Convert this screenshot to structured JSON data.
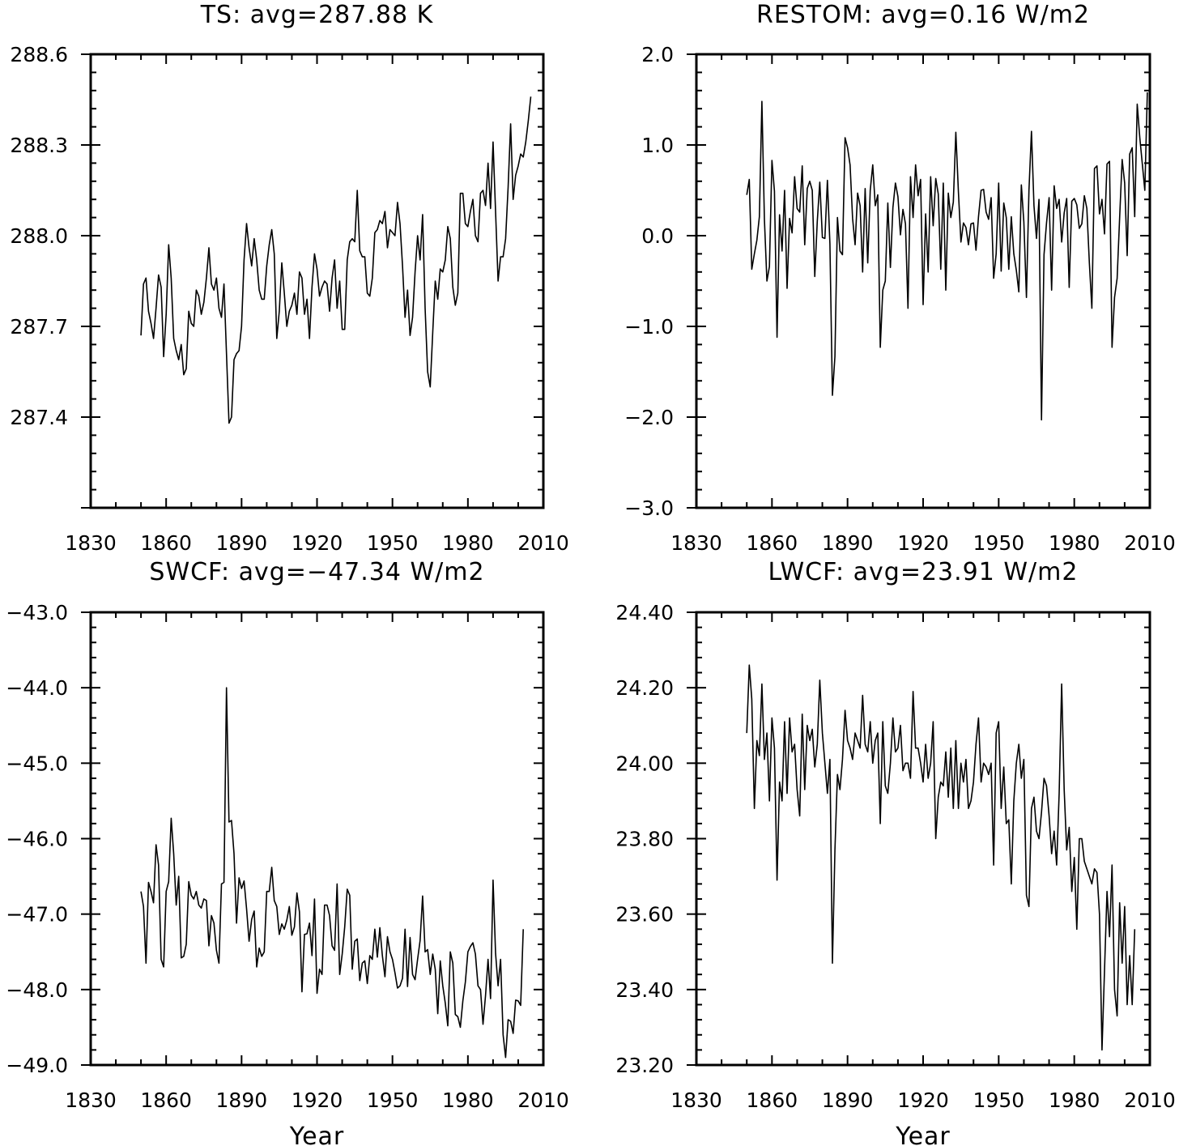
{
  "chart_data": [
    {
      "type": "line",
      "title": "TS: avg=287.88 K",
      "xlabel": "",
      "ylabel": "",
      "xlim": [
        1830,
        2010
      ],
      "ylim": [
        287.1,
        288.6
      ],
      "xticks": [
        1830,
        1860,
        1890,
        1920,
        1950,
        1980,
        2010
      ],
      "yticks": [
        "287.4",
        "287.7",
        "288.0",
        "288.3",
        "288.6"
      ],
      "grid": false,
      "series": [
        {
          "x_start": 1850,
          "values": [
            287.67,
            287.84,
            287.86,
            287.75,
            287.71,
            287.66,
            287.76,
            287.87,
            287.83,
            287.6,
            287.74,
            287.97,
            287.86,
            287.66,
            287.62,
            287.59,
            287.64,
            287.54,
            287.56,
            287.75,
            287.71,
            287.7,
            287.82,
            287.8,
            287.74,
            287.78,
            287.86,
            287.96,
            287.84,
            287.82,
            287.86,
            287.76,
            287.73,
            287.84,
            287.61,
            287.38,
            287.4,
            287.59,
            287.61,
            287.62,
            287.7,
            287.92,
            288.04,
            287.96,
            287.9,
            287.99,
            287.92,
            287.82,
            287.79,
            287.79,
            287.9,
            287.97,
            288.02,
            287.94,
            287.66,
            287.75,
            287.91,
            287.81,
            287.7,
            287.75,
            287.77,
            287.81,
            287.74,
            287.88,
            287.86,
            287.74,
            287.79,
            287.66,
            287.83,
            287.94,
            287.89,
            287.8,
            287.83,
            287.85,
            287.84,
            287.75,
            287.86,
            287.92,
            287.76,
            287.85,
            287.69,
            287.69,
            287.92,
            287.98,
            287.99,
            287.98,
            288.15,
            287.95,
            287.93,
            287.93,
            287.81,
            287.8,
            287.86,
            288.01,
            288.02,
            288.05,
            288.04,
            288.08,
            287.96,
            288.02,
            288.01,
            288.0,
            288.11,
            288.04,
            287.9,
            287.73,
            287.82,
            287.67,
            287.73,
            287.88,
            288.0,
            287.92,
            288.07,
            287.76,
            287.55,
            287.5,
            287.68,
            287.85,
            287.79,
            287.89,
            287.88,
            287.92,
            288.03,
            287.99,
            287.83,
            287.77,
            287.81,
            288.14,
            288.14,
            288.04,
            288.03,
            288.08,
            288.12,
            288.0,
            287.98,
            288.14,
            288.15,
            288.1,
            288.24,
            288.09,
            288.31,
            288.08,
            287.85,
            287.93,
            287.93,
            287.99,
            288.16,
            288.37,
            288.12,
            288.2,
            288.23,
            288.27,
            288.26,
            288.31,
            288.38,
            288.46
          ]
        }
      ]
    },
    {
      "type": "line",
      "title": "RESTOM: avg=0.16 W/m2",
      "xlabel": "",
      "ylabel": "",
      "xlim": [
        1830,
        2010
      ],
      "ylim": [
        -3.0,
        2.0
      ],
      "xticks": [
        1830,
        1860,
        1890,
        1920,
        1950,
        1980,
        2010
      ],
      "yticks": [
        "−3.0",
        "−2.0",
        "−1.0",
        "0.0",
        "1.0",
        "2.0"
      ],
      "grid": false,
      "series": [
        {
          "x_start": 1850,
          "values": [
            0.45,
            0.62,
            -0.37,
            -0.2,
            -0.05,
            0.21,
            1.48,
            0.18,
            -0.5,
            -0.34,
            0.83,
            0.49,
            -1.12,
            0.23,
            -0.17,
            0.5,
            -0.58,
            0.19,
            0.03,
            0.65,
            0.3,
            0.26,
            0.77,
            -0.1,
            0.52,
            0.6,
            0.5,
            -0.45,
            0.16,
            0.59,
            -0.02,
            -0.03,
            0.61,
            -0.09,
            -1.76,
            -1.33,
            0.2,
            -0.17,
            -0.21,
            1.08,
            0.97,
            0.78,
            0.19,
            -0.1,
            0.47,
            0.33,
            -0.4,
            0.52,
            -0.3,
            0.5,
            0.78,
            0.33,
            0.45,
            -1.23,
            -0.6,
            -0.5,
            0.36,
            -0.35,
            0.31,
            0.58,
            0.43,
            0.01,
            0.29,
            0.13,
            -0.8,
            0.65,
            0.2,
            0.78,
            0.44,
            0.62,
            -0.76,
            0.24,
            -0.4,
            0.65,
            0.11,
            0.63,
            0.46,
            -0.37,
            0.58,
            -0.6,
            0.47,
            0.2,
            0.37,
            1.14,
            0.48,
            -0.07,
            0.14,
            0.09,
            -0.1,
            0.13,
            0.14,
            -0.16,
            0.21,
            0.5,
            0.51,
            0.26,
            0.18,
            0.42,
            -0.47,
            -0.2,
            0.58,
            -0.39,
            0.36,
            0.2,
            -0.37,
            0.21,
            -0.2,
            -0.38,
            -0.62,
            0.56,
            0.15,
            -0.68,
            0.5,
            1.15,
            0.33,
            -0.03,
            0.4,
            -2.03,
            -0.21,
            0.14,
            0.42,
            -0.6,
            0.55,
            0.3,
            0.4,
            -0.07,
            0.25,
            0.41,
            -0.57,
            0.38,
            0.41,
            0.34,
            0.08,
            0.13,
            0.44,
            0.3,
            -0.3,
            -0.8,
            0.74,
            0.77,
            0.24,
            0.4,
            0.02,
            0.79,
            0.82,
            -1.23,
            -0.68,
            -0.47,
            0.2,
            0.84,
            0.58,
            -0.22,
            0.9,
            0.97,
            0.21,
            1.45,
            1.08,
            0.79,
            0.5,
            1.58
          ]
        }
      ]
    },
    {
      "type": "line",
      "title": "SWCF: avg=−47.34 W/m2",
      "xlabel": "Year",
      "ylabel": "",
      "xlim": [
        1830,
        2010
      ],
      "ylim": [
        -49.0,
        -43.0
      ],
      "xticks": [
        1830,
        1860,
        1890,
        1920,
        1950,
        1980,
        2010
      ],
      "yticks": [
        "−49.0",
        "−48.0",
        "−47.0",
        "−46.0",
        "−45.0",
        "−44.0",
        "−43.0"
      ],
      "grid": false,
      "series": [
        {
          "x_start": 1850,
          "values": [
            -46.7,
            -46.9,
            -47.65,
            -46.58,
            -46.7,
            -46.85,
            -46.08,
            -46.35,
            -47.6,
            -47.7,
            -46.7,
            -46.57,
            -45.73,
            -46.2,
            -46.88,
            -46.5,
            -47.58,
            -47.56,
            -47.4,
            -46.57,
            -46.75,
            -46.8,
            -46.7,
            -46.88,
            -46.92,
            -46.8,
            -46.82,
            -47.42,
            -47.02,
            -47.12,
            -47.48,
            -47.65,
            -46.6,
            -46.58,
            -44.0,
            -45.78,
            -45.76,
            -46.2,
            -47.12,
            -46.52,
            -46.66,
            -46.56,
            -46.93,
            -47.36,
            -47.07,
            -46.96,
            -47.7,
            -47.45,
            -47.56,
            -47.5,
            -46.7,
            -46.7,
            -46.38,
            -46.82,
            -46.9,
            -47.27,
            -47.13,
            -47.2,
            -47.08,
            -46.9,
            -47.28,
            -47.17,
            -46.72,
            -46.97,
            -48.03,
            -47.27,
            -47.26,
            -47.12,
            -47.55,
            -46.8,
            -48.05,
            -47.73,
            -47.8,
            -46.88,
            -46.88,
            -47.02,
            -47.42,
            -47.48,
            -46.6,
            -47.8,
            -47.53,
            -47.17,
            -46.67,
            -46.75,
            -47.73,
            -47.36,
            -47.33,
            -47.88,
            -47.65,
            -47.62,
            -47.92,
            -47.55,
            -47.6,
            -47.2,
            -47.57,
            -47.18,
            -47.55,
            -47.83,
            -47.3,
            -47.5,
            -47.6,
            -47.78,
            -47.98,
            -47.95,
            -47.85,
            -47.2,
            -47.96,
            -47.31,
            -47.8,
            -47.87,
            -47.6,
            -47.35,
            -46.76,
            -47.5,
            -47.47,
            -47.8,
            -47.53,
            -47.73,
            -48.32,
            -47.62,
            -47.95,
            -48.18,
            -48.48,
            -47.5,
            -47.65,
            -48.33,
            -48.36,
            -48.5,
            -48.15,
            -47.9,
            -47.5,
            -47.43,
            -47.38,
            -47.53,
            -47.95,
            -48.0,
            -48.46,
            -48.08,
            -47.6,
            -48.12,
            -46.55,
            -47.52,
            -47.95,
            -47.6,
            -48.6,
            -48.9,
            -48.4,
            -48.42,
            -48.58,
            -48.14,
            -48.15,
            -48.21,
            -47.2
          ]
        }
      ]
    },
    {
      "type": "line",
      "title": "LWCF: avg=23.91 W/m2",
      "xlabel": "Year",
      "ylabel": "",
      "xlim": [
        1830,
        2010
      ],
      "ylim": [
        23.2,
        24.4
      ],
      "xticks": [
        1830,
        1860,
        1890,
        1920,
        1950,
        1980,
        2010
      ],
      "yticks": [
        "23.20",
        "23.40",
        "23.60",
        "23.80",
        "24.00",
        "24.20",
        "24.40"
      ],
      "grid": false,
      "series": [
        {
          "x_start": 1850,
          "values": [
            24.08,
            24.26,
            24.17,
            23.88,
            24.06,
            24.02,
            24.21,
            24.01,
            24.08,
            23.9,
            24.12,
            24.04,
            23.69,
            23.95,
            23.9,
            24.11,
            23.92,
            24.12,
            24.03,
            24.05,
            23.93,
            23.86,
            24.13,
            23.93,
            24.1,
            24.06,
            24.09,
            23.99,
            24.05,
            24.22,
            24.08,
            24.0,
            23.92,
            24.01,
            23.47,
            23.77,
            23.97,
            23.93,
            24.01,
            24.14,
            24.06,
            24.04,
            24.01,
            24.08,
            24.06,
            24.04,
            24.18,
            24.05,
            24.03,
            24.11,
            24.0,
            24.06,
            24.08,
            23.84,
            24.11,
            23.94,
            23.92,
            24.0,
            24.12,
            24.03,
            24.04,
            24.1,
            23.98,
            24.0,
            24.0,
            23.96,
            24.19,
            24.04,
            24.04,
            24.0,
            23.95,
            24.05,
            23.96,
            24.0,
            24.11,
            23.8,
            23.91,
            23.95,
            23.94,
            24.03,
            23.91,
            24.04,
            23.88,
            24.06,
            23.88,
            24.0,
            23.95,
            24.01,
            23.88,
            23.9,
            23.95,
            24.05,
            24.12,
            23.95,
            24.0,
            23.99,
            23.97,
            24.0,
            23.73,
            24.08,
            24.11,
            23.88,
            23.99,
            23.84,
            23.85,
            23.68,
            23.9,
            24.0,
            24.05,
            23.96,
            24.01,
            23.65,
            23.62,
            23.88,
            23.91,
            23.82,
            23.8,
            23.87,
            23.96,
            23.94,
            23.86,
            23.76,
            23.82,
            23.73,
            23.92,
            24.21,
            23.93,
            23.77,
            23.83,
            23.66,
            23.75,
            23.56,
            23.8,
            23.8,
            23.74,
            23.72,
            23.7,
            23.68,
            23.72,
            23.71,
            23.6,
            23.24,
            23.45,
            23.66,
            23.54,
            23.73,
            23.4,
            23.33,
            23.63,
            23.47,
            23.62,
            23.36,
            23.49,
            23.36,
            23.56
          ]
        }
      ]
    }
  ]
}
